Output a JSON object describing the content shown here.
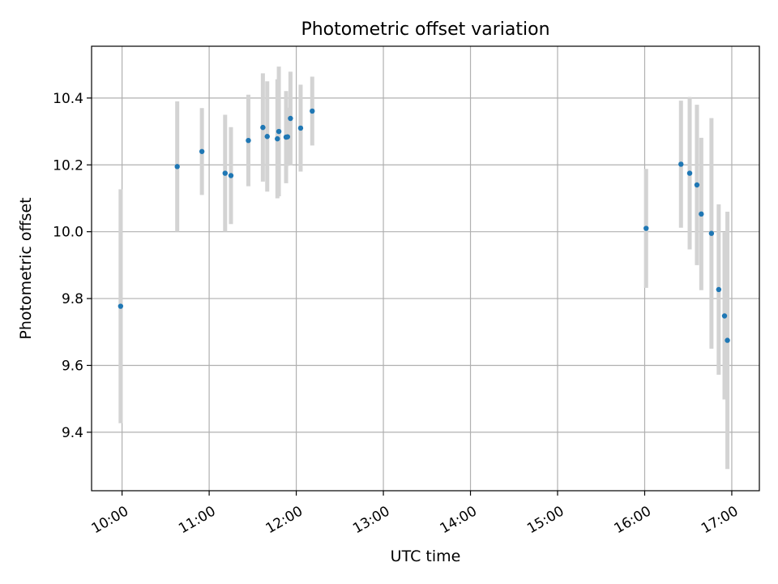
{
  "chart_data": {
    "type": "scatter",
    "title": "Photometric offset variation",
    "xlabel": "UTC time",
    "ylabel": "Photometric offset",
    "xlim": [
      "09:39",
      "17:19"
    ],
    "ylim": [
      9.225,
      10.555
    ],
    "xticks": [
      "10:00",
      "11:00",
      "12:00",
      "13:00",
      "14:00",
      "15:00",
      "16:00",
      "17:00"
    ],
    "yticks": [
      9.4,
      9.6,
      9.8,
      10.0,
      10.2,
      10.4
    ],
    "grid": true,
    "colors": {
      "point": "#1f77b4",
      "errorbar": "#d3d3d3"
    },
    "points": [
      {
        "x": "09:59",
        "y": 9.777,
        "yerr": 0.35
      },
      {
        "x": "10:38",
        "y": 10.195,
        "yerr": 0.195
      },
      {
        "x": "10:55",
        "y": 10.24,
        "yerr": 0.13
      },
      {
        "x": "11:11",
        "y": 10.175,
        "yerr": 0.175
      },
      {
        "x": "11:15",
        "y": 10.168,
        "yerr": 0.145
      },
      {
        "x": "11:27",
        "y": 10.273,
        "yerr": 0.137
      },
      {
        "x": "11:37",
        "y": 10.312,
        "yerr": 0.162
      },
      {
        "x": "11:40",
        "y": 10.285,
        "yerr": 0.165
      },
      {
        "x": "11:47",
        "y": 10.278,
        "yerr": 0.178
      },
      {
        "x": "11:48",
        "y": 10.3,
        "yerr": 0.194
      },
      {
        "x": "11:53",
        "y": 10.283,
        "yerr": 0.138
      },
      {
        "x": "11:54",
        "y": 10.284,
        "yerr": 0.087
      },
      {
        "x": "11:56",
        "y": 10.339,
        "yerr": 0.14
      },
      {
        "x": "12:03",
        "y": 10.31,
        "yerr": 0.13
      },
      {
        "x": "12:11",
        "y": 10.361,
        "yerr": 0.103
      },
      {
        "x": "16:01",
        "y": 10.01,
        "yerr": 0.178
      },
      {
        "x": "16:25",
        "y": 10.202,
        "yerr": 0.19
      },
      {
        "x": "16:31",
        "y": 10.175,
        "yerr": 0.228
      },
      {
        "x": "16:36",
        "y": 10.14,
        "yerr": 0.24
      },
      {
        "x": "16:39",
        "y": 10.053,
        "yerr": 0.228
      },
      {
        "x": "16:46",
        "y": 9.995,
        "yerr": 0.345
      },
      {
        "x": "16:51",
        "y": 9.827,
        "yerr": 0.255
      },
      {
        "x": "16:55",
        "y": 9.748,
        "yerr": 0.25
      },
      {
        "x": "16:57",
        "y": 9.675,
        "yerr": 0.385
      }
    ]
  }
}
